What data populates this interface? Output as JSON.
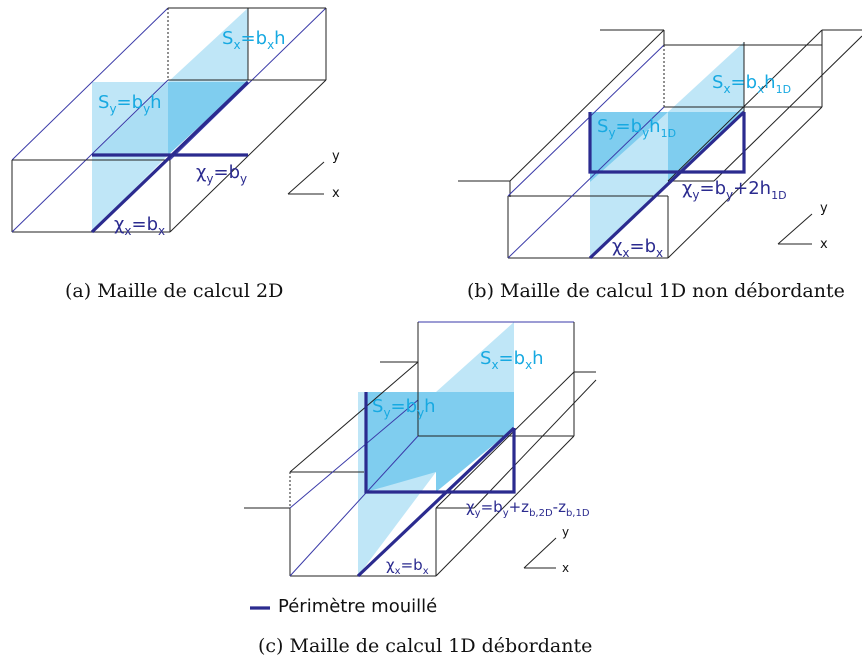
{
  "colors": {
    "water_light": "#bfe6f7",
    "water_dark": "#7fcdef",
    "label_cyan": "#17a9e1",
    "label_navy": "#2b2b8f",
    "wetted_perimeter": "#2b2b8f"
  },
  "diagram_a": {
    "caption": "(a) Maille de calcul 2D",
    "sx": {
      "pre": "S",
      "sub1": "x",
      "mid": "=b",
      "sub2": "x",
      "post": "h"
    },
    "sy": {
      "pre": "S",
      "sub1": "y",
      "mid": "=b",
      "sub2": "y",
      "post": "h"
    },
    "chiy": {
      "pre": "χ",
      "sub1": "y",
      "mid": "=b",
      "sub2": "y"
    },
    "chix": {
      "pre": "χ",
      "sub1": "x",
      "mid": "=b",
      "sub2": "x"
    },
    "axis_y": "y",
    "axis_x": "x"
  },
  "diagram_b": {
    "caption": "(b) Maille de calcul 1D non débordante",
    "sx": {
      "pre": "S",
      "sub1": "x",
      "mid": "=b",
      "sub2": "x",
      "post": "h",
      "sub3": "1D"
    },
    "sy": {
      "pre": "S",
      "sub1": "y",
      "mid": "=b",
      "sub2": "y",
      "post": "h",
      "sub3": "1D"
    },
    "chiy": {
      "pre": "χ",
      "sub1": "y",
      "mid": "=b",
      "sub2": "y",
      "post": "+2h",
      "sub3": "1D"
    },
    "chix": {
      "pre": "χ",
      "sub1": "x",
      "mid": "=b",
      "sub2": "x"
    },
    "axis_y": "y",
    "axis_x": "x"
  },
  "diagram_c": {
    "caption": "(c) Maille de calcul 1D débordante",
    "sx": {
      "pre": "S",
      "sub1": "x",
      "mid": "=b",
      "sub2": "x",
      "post": "h"
    },
    "sy": {
      "pre": "S",
      "sub1": "y",
      "mid": "=b",
      "sub2": "y",
      "post": "h"
    },
    "chiy": {
      "pre": "χ",
      "sub1": "y",
      "mid": "=b",
      "sub2": "y",
      "post": "+z",
      "sub3": "b,2D",
      "post2": "-z",
      "sub4": "b,1D"
    },
    "chix": {
      "pre": "χ",
      "sub1": "x",
      "mid": "=b",
      "sub2": "x"
    },
    "axis_y": "y",
    "axis_x": "x",
    "legend": "Périmètre mouillé"
  }
}
